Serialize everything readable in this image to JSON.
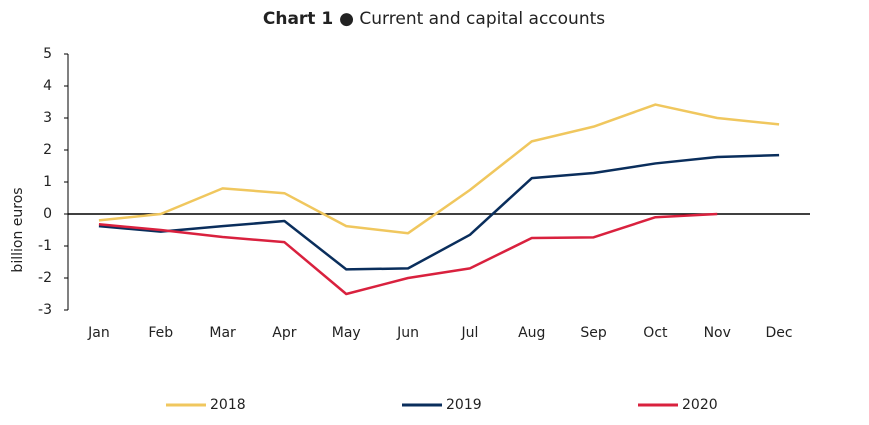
{
  "chart_data": {
    "type": "line",
    "title_label": "Chart 1",
    "title": "● Current and capital accounts",
    "y_label": "billion euros",
    "categories": [
      "Jan",
      "Feb",
      "Mar",
      "Apr",
      "May",
      "Jun",
      "Jul",
      "Aug",
      "Sep",
      "Oct",
      "Nov",
      "Dec"
    ],
    "series": [
      {
        "name": "2018",
        "color": "#f0c75e",
        "values": [
          -0.2,
          0.0,
          0.8,
          0.65,
          -0.38,
          -0.6,
          0.75,
          2.27,
          2.73,
          3.42,
          3.0,
          2.8
        ]
      },
      {
        "name": "2019",
        "color": "#0a2e5c",
        "values": [
          -0.38,
          -0.55,
          -0.38,
          -0.22,
          -1.73,
          -1.7,
          -0.65,
          1.12,
          1.28,
          1.58,
          1.78,
          1.84
        ]
      },
      {
        "name": "2020",
        "color": "#d9213e",
        "values": [
          -0.32,
          -0.5,
          -0.72,
          -0.88,
          -2.5,
          -2.0,
          -1.7,
          -0.75,
          -0.73,
          -0.1,
          0.0,
          null
        ]
      }
    ],
    "ylim": [
      -3,
      5
    ],
    "yticks": [
      -3,
      -2,
      -1,
      0,
      1,
      2,
      3,
      4,
      5
    ],
    "legend": "bottom"
  }
}
